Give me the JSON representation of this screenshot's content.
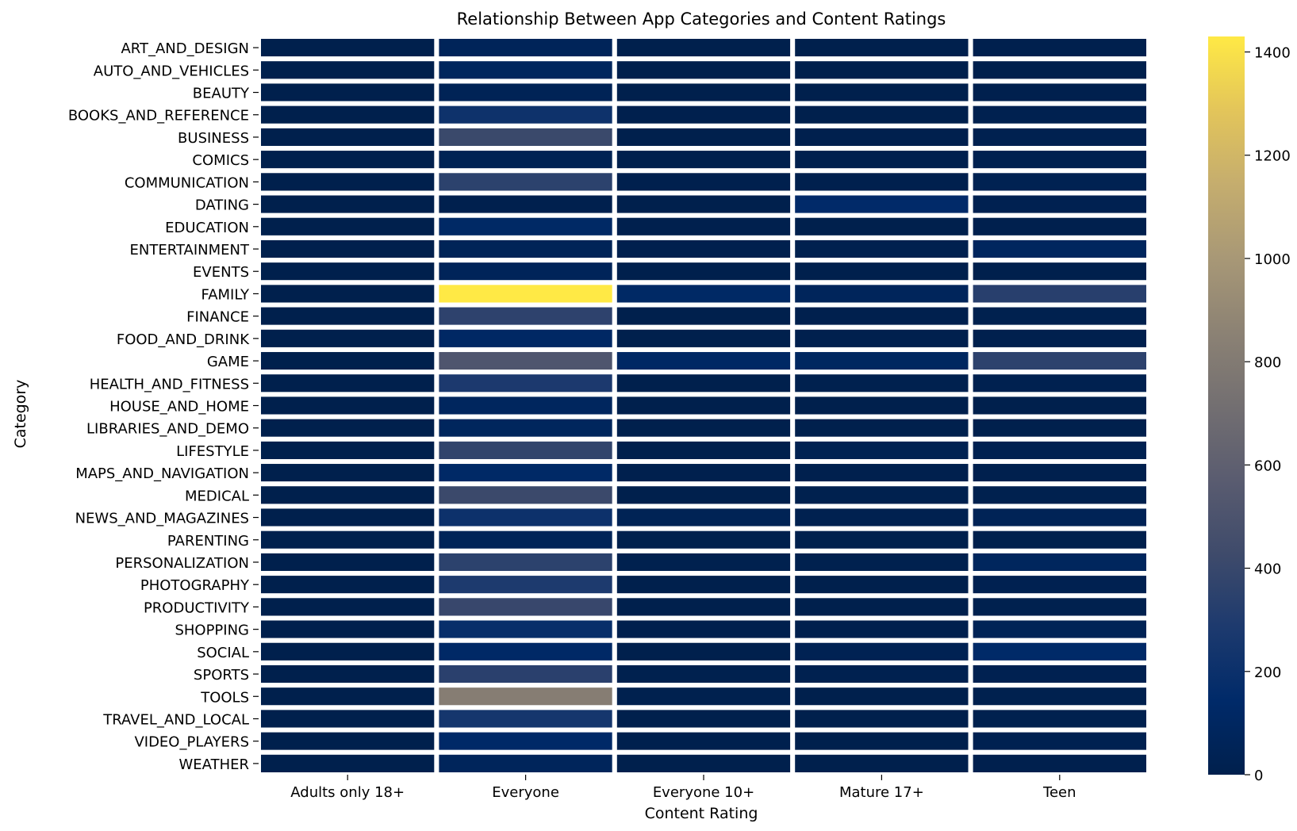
{
  "chart_data": {
    "type": "heatmap",
    "title": "Relationship Between App Categories and Content Ratings",
    "xlabel": "Content Rating",
    "ylabel": "Category",
    "colormap": "cividis",
    "colorbar": {
      "min": 0,
      "max": 1430,
      "ticks": [
        0,
        200,
        400,
        600,
        800,
        1000,
        1200,
        1400
      ]
    },
    "grid": false,
    "legend": "colorbar-right",
    "columns": [
      "Adults only 18+",
      "Everyone",
      "Everyone 10+",
      "Mature 17+",
      "Teen"
    ],
    "rows": [
      "ART_AND_DESIGN",
      "AUTO_AND_VEHICLES",
      "BEAUTY",
      "BOOKS_AND_REFERENCE",
      "BUSINESS",
      "COMICS",
      "COMMUNICATION",
      "DATING",
      "EDUCATION",
      "ENTERTAINMENT",
      "EVENTS",
      "FAMILY",
      "FINANCE",
      "FOOD_AND_DRINK",
      "GAME",
      "HEALTH_AND_FITNESS",
      "HOUSE_AND_HOME",
      "LIBRARIES_AND_DEMO",
      "LIFESTYLE",
      "MAPS_AND_NAVIGATION",
      "MEDICAL",
      "NEWS_AND_MAGAZINES",
      "PARENTING",
      "PERSONALIZATION",
      "PHOTOGRAPHY",
      "PRODUCTIVITY",
      "SHOPPING",
      "SOCIAL",
      "SPORTS",
      "TOOLS",
      "TRAVEL_AND_LOCAL",
      "VIDEO_PLAYERS",
      "WEATHER"
    ],
    "values": [
      [
        0,
        61,
        1,
        0,
        3
      ],
      [
        0,
        82,
        1,
        1,
        1
      ],
      [
        0,
        47,
        0,
        2,
        4
      ],
      [
        0,
        211,
        5,
        1,
        14
      ],
      [
        0,
        408,
        1,
        3,
        15
      ],
      [
        0,
        37,
        1,
        5,
        16
      ],
      [
        0,
        350,
        3,
        6,
        28
      ],
      [
        0,
        5,
        0,
        146,
        20
      ],
      [
        0,
        122,
        5,
        0,
        3
      ],
      [
        0,
        51,
        4,
        10,
        85
      ],
      [
        0,
        61,
        0,
        0,
        2
      ],
      [
        0,
        1430,
        122,
        71,
        331
      ],
      [
        0,
        356,
        0,
        3,
        10
      ],
      [
        0,
        117,
        0,
        5,
        5
      ],
      [
        0,
        514,
        118,
        97,
        352
      ],
      [
        0,
        279,
        2,
        8,
        17
      ],
      [
        0,
        85,
        0,
        1,
        1
      ],
      [
        0,
        80,
        1,
        1,
        1
      ],
      [
        0,
        372,
        1,
        24,
        20
      ],
      [
        0,
        126,
        3,
        3,
        5
      ],
      [
        0,
        414,
        0,
        8,
        12
      ],
      [
        0,
        209,
        43,
        17,
        48
      ],
      [
        0,
        57,
        2,
        1,
        0
      ],
      [
        0,
        351,
        9,
        9,
        82
      ],
      [
        0,
        288,
        2,
        2,
        19
      ],
      [
        0,
        398,
        1,
        2,
        12
      ],
      [
        0,
        176,
        3,
        3,
        47
      ],
      [
        0,
        128,
        1,
        30,
        138
      ],
      [
        0,
        340,
        11,
        14,
        20
      ],
      [
        0,
        822,
        9,
        2,
        9
      ],
      [
        0,
        247,
        0,
        0,
        8
      ],
      [
        0,
        135,
        4,
        2,
        20
      ],
      [
        0,
        71,
        0,
        0,
        4
      ]
    ]
  }
}
